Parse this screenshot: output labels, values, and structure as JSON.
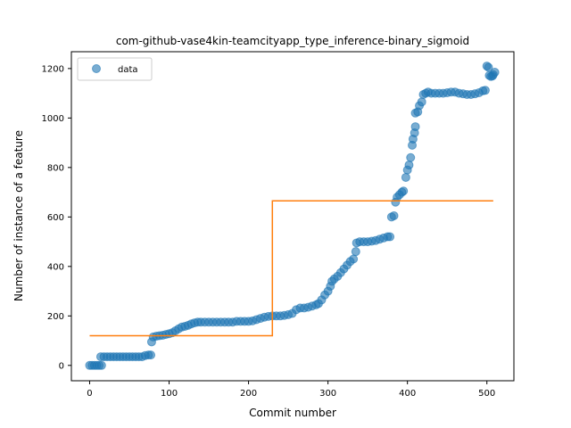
{
  "chart_data": {
    "type": "scatter",
    "title": "com-github-vase4kin-teamcityapp_type_inference-binary_sigmoid",
    "xlabel": "Commit number",
    "ylabel": "Number of instance of a feature",
    "xlim": [
      -23,
      534
    ],
    "ylim": [
      -62,
      1268
    ],
    "xticks": [
      0,
      100,
      200,
      300,
      400,
      500
    ],
    "yticks": [
      0,
      200,
      400,
      600,
      800,
      1000,
      1200
    ],
    "grid": false,
    "legend": {
      "position": "top-left",
      "entries": [
        "data"
      ]
    },
    "colors": {
      "data": "#1f77b4",
      "fit": "#ff7f0e"
    },
    "series": [
      {
        "name": "data",
        "kind": "scatter",
        "points": [
          [
            0,
            0
          ],
          [
            3,
            0
          ],
          [
            6,
            0
          ],
          [
            9,
            0
          ],
          [
            12,
            0
          ],
          [
            15,
            0
          ],
          [
            14,
            35
          ],
          [
            18,
            35
          ],
          [
            22,
            35
          ],
          [
            26,
            35
          ],
          [
            30,
            35
          ],
          [
            34,
            35
          ],
          [
            38,
            35
          ],
          [
            42,
            35
          ],
          [
            46,
            35
          ],
          [
            50,
            35
          ],
          [
            54,
            35
          ],
          [
            58,
            35
          ],
          [
            62,
            35
          ],
          [
            66,
            35
          ],
          [
            70,
            40
          ],
          [
            74,
            42
          ],
          [
            77,
            42
          ],
          [
            78,
            95
          ],
          [
            80,
            115
          ],
          [
            84,
            118
          ],
          [
            88,
            120
          ],
          [
            92,
            122
          ],
          [
            96,
            125
          ],
          [
            100,
            128
          ],
          [
            104,
            132
          ],
          [
            108,
            140
          ],
          [
            112,
            148
          ],
          [
            116,
            155
          ],
          [
            120,
            158
          ],
          [
            124,
            162
          ],
          [
            128,
            168
          ],
          [
            132,
            172
          ],
          [
            136,
            175
          ],
          [
            140,
            175
          ],
          [
            145,
            175
          ],
          [
            150,
            175
          ],
          [
            155,
            175
          ],
          [
            160,
            175
          ],
          [
            165,
            175
          ],
          [
            170,
            175
          ],
          [
            175,
            175
          ],
          [
            180,
            175
          ],
          [
            185,
            178
          ],
          [
            190,
            178
          ],
          [
            195,
            178
          ],
          [
            200,
            178
          ],
          [
            205,
            180
          ],
          [
            210,
            185
          ],
          [
            215,
            190
          ],
          [
            220,
            195
          ],
          [
            225,
            198
          ],
          [
            230,
            200
          ],
          [
            235,
            200
          ],
          [
            240,
            200
          ],
          [
            245,
            202
          ],
          [
            250,
            205
          ],
          [
            255,
            210
          ],
          [
            260,
            225
          ],
          [
            265,
            232
          ],
          [
            270,
            232
          ],
          [
            275,
            235
          ],
          [
            280,
            240
          ],
          [
            285,
            245
          ],
          [
            288,
            250
          ],
          [
            292,
            265
          ],
          [
            296,
            285
          ],
          [
            300,
            300
          ],
          [
            303,
            320
          ],
          [
            305,
            340
          ],
          [
            308,
            350
          ],
          [
            312,
            360
          ],
          [
            316,
            375
          ],
          [
            320,
            390
          ],
          [
            324,
            405
          ],
          [
            328,
            420
          ],
          [
            332,
            430
          ],
          [
            335,
            460
          ],
          [
            336,
            495
          ],
          [
            340,
            500
          ],
          [
            345,
            500
          ],
          [
            350,
            500
          ],
          [
            355,
            502
          ],
          [
            360,
            505
          ],
          [
            365,
            510
          ],
          [
            370,
            515
          ],
          [
            375,
            520
          ],
          [
            378,
            520
          ],
          [
            380,
            600
          ],
          [
            383,
            605
          ],
          [
            385,
            660
          ],
          [
            387,
            680
          ],
          [
            390,
            690
          ],
          [
            393,
            700
          ],
          [
            395,
            705
          ],
          [
            398,
            760
          ],
          [
            400,
            790
          ],
          [
            402,
            810
          ],
          [
            404,
            840
          ],
          [
            406,
            890
          ],
          [
            407,
            915
          ],
          [
            409,
            940
          ],
          [
            410,
            965
          ],
          [
            410,
            1020
          ],
          [
            413,
            1025
          ],
          [
            415,
            1050
          ],
          [
            418,
            1065
          ],
          [
            420,
            1095
          ],
          [
            423,
            1100
          ],
          [
            426,
            1105
          ],
          [
            430,
            1100
          ],
          [
            435,
            1100
          ],
          [
            440,
            1100
          ],
          [
            445,
            1100
          ],
          [
            450,
            1102
          ],
          [
            455,
            1105
          ],
          [
            460,
            1105
          ],
          [
            465,
            1100
          ],
          [
            470,
            1098
          ],
          [
            475,
            1095
          ],
          [
            480,
            1095
          ],
          [
            485,
            1098
          ],
          [
            490,
            1102
          ],
          [
            495,
            1110
          ],
          [
            498,
            1112
          ],
          [
            500,
            1210
          ],
          [
            502,
            1205
          ],
          [
            503,
            1172
          ],
          [
            505,
            1168
          ],
          [
            507,
            1170
          ],
          [
            508,
            1175
          ],
          [
            510,
            1185
          ]
        ]
      },
      {
        "name": "",
        "kind": "step-line",
        "x": [
          0,
          230,
          230,
          508
        ],
        "y": [
          120,
          120,
          665,
          665
        ]
      }
    ]
  }
}
